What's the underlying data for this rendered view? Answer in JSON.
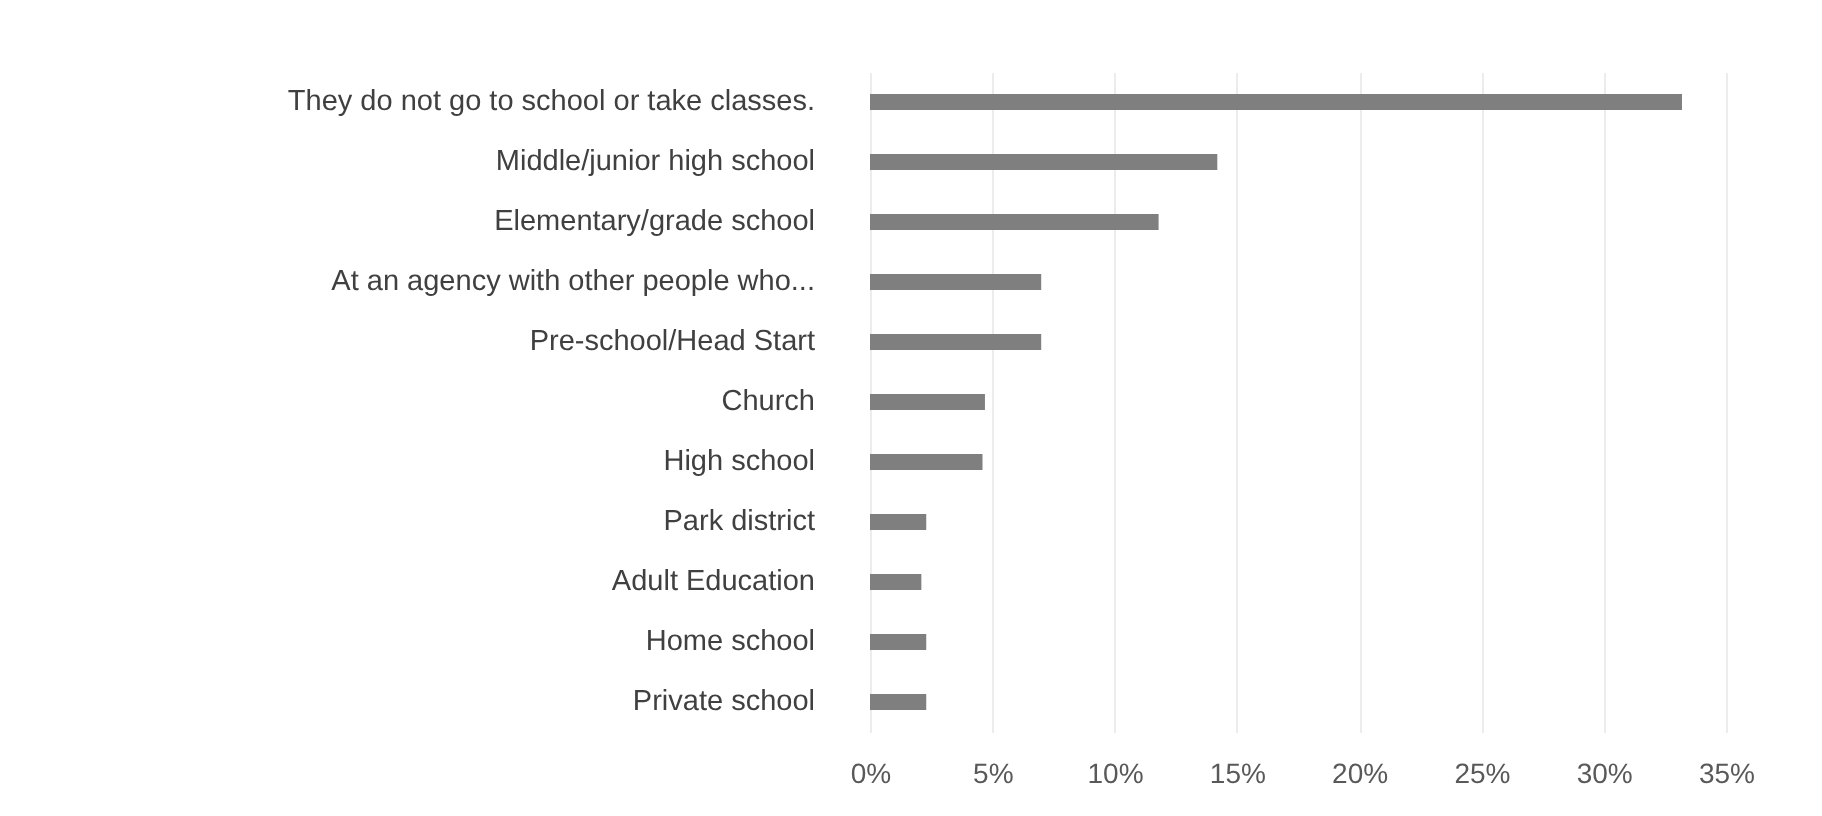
{
  "chart_data": {
    "type": "bar",
    "orientation": "horizontal",
    "categories": [
      "They do not go to school or take classes.",
      "Middle/junior high  school",
      "Elementary/grade school",
      "At an agency with other people who...",
      "Pre-school/Head Start",
      "Church",
      "High school",
      "Park district",
      "Adult Education",
      "Home school",
      "Private school"
    ],
    "values": [
      33.2,
      14.2,
      11.8,
      7.0,
      7.0,
      4.7,
      4.6,
      2.3,
      2.1,
      2.3,
      2.3
    ],
    "color": "#7f7f7f",
    "xlim": [
      0,
      35
    ],
    "xticks": [
      {
        "value": 0,
        "label": "0%"
      },
      {
        "value": 5,
        "label": "5%"
      },
      {
        "value": 10,
        "label": "10%"
      },
      {
        "value": 15,
        "label": "15%"
      },
      {
        "value": 20,
        "label": "20%"
      },
      {
        "value": 25,
        "label": "25%"
      },
      {
        "value": 30,
        "label": "30%"
      },
      {
        "value": 35,
        "label": "35%"
      }
    ],
    "grid": "x"
  }
}
